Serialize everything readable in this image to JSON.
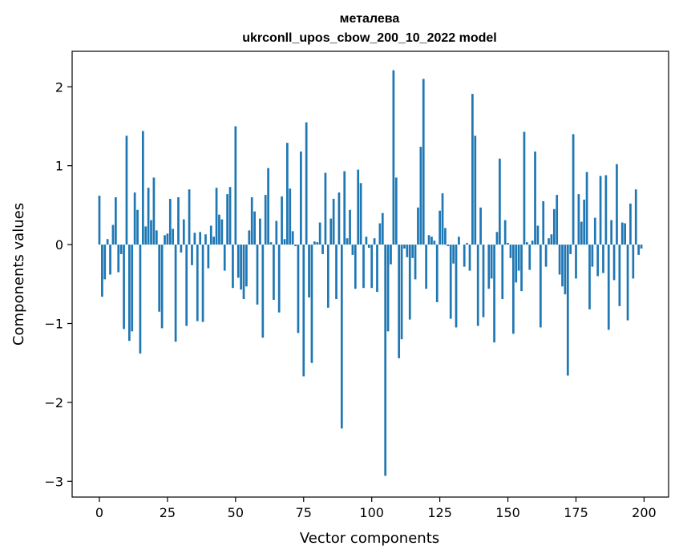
{
  "chart_data": {
    "type": "bar",
    "title": "металева",
    "subtitle": "ukrconll_upos_cbow_200_10_2022 model",
    "xlabel": "Vector components",
    "ylabel": "Components values",
    "xlim": [
      -10,
      209
    ],
    "ylim": [
      -3.2,
      2.45
    ],
    "xticks": [
      0,
      25,
      50,
      75,
      100,
      125,
      150,
      175,
      200
    ],
    "yticks": [
      -3,
      -2,
      -1,
      0,
      1,
      2
    ],
    "ytick_labels": [
      "−3",
      "−2",
      "−1",
      "0",
      "1",
      "2"
    ],
    "grid": false,
    "bar_color": "#1f77b4",
    "x": [
      0,
      1,
      2,
      3,
      4,
      5,
      6,
      7,
      8,
      9,
      10,
      11,
      12,
      13,
      14,
      15,
      16,
      17,
      18,
      19,
      20,
      21,
      22,
      23,
      24,
      25,
      26,
      27,
      28,
      29,
      30,
      31,
      32,
      33,
      34,
      35,
      36,
      37,
      38,
      39,
      40,
      41,
      42,
      43,
      44,
      45,
      46,
      47,
      48,
      49,
      50,
      51,
      52,
      53,
      54,
      55,
      56,
      57,
      58,
      59,
      60,
      61,
      62,
      63,
      64,
      65,
      66,
      67,
      68,
      69,
      70,
      71,
      72,
      73,
      74,
      75,
      76,
      77,
      78,
      79,
      80,
      81,
      82,
      83,
      84,
      85,
      86,
      87,
      88,
      89,
      90,
      91,
      92,
      93,
      94,
      95,
      96,
      97,
      98,
      99,
      100,
      101,
      102,
      103,
      104,
      105,
      106,
      107,
      108,
      109,
      110,
      111,
      112,
      113,
      114,
      115,
      116,
      117,
      118,
      119,
      120,
      121,
      122,
      123,
      124,
      125,
      126,
      127,
      128,
      129,
      130,
      131,
      132,
      133,
      134,
      135,
      136,
      137,
      138,
      139,
      140,
      141,
      142,
      143,
      144,
      145,
      146,
      147,
      148,
      149,
      150,
      151,
      152,
      153,
      154,
      155,
      156,
      157,
      158,
      159,
      160,
      161,
      162,
      163,
      164,
      165,
      166,
      167,
      168,
      169,
      170,
      171,
      172,
      173,
      174,
      175,
      176,
      177,
      178,
      179,
      180,
      181,
      182,
      183,
      184,
      185,
      186,
      187,
      188,
      189,
      190,
      191,
      192,
      193,
      194,
      195,
      196,
      197,
      198,
      199
    ],
    "values": [
      0.62,
      -0.66,
      -0.44,
      0.07,
      -0.38,
      0.25,
      0.6,
      -0.35,
      -0.12,
      -1.07,
      1.38,
      -1.22,
      -1.1,
      0.66,
      0.44,
      -1.38,
      1.44,
      0.23,
      0.72,
      0.31,
      0.85,
      0.18,
      -0.85,
      -1.06,
      0.12,
      0.14,
      0.58,
      0.2,
      -1.23,
      0.6,
      -0.1,
      0.32,
      -1.03,
      0.7,
      -0.26,
      0.15,
      -0.97,
      0.16,
      -0.98,
      0.13,
      -0.3,
      0.24,
      0.1,
      0.72,
      0.38,
      0.32,
      -0.33,
      0.64,
      0.73,
      -0.55,
      1.5,
      -0.42,
      -0.57,
      -0.69,
      -0.53,
      0.18,
      0.6,
      0.42,
      -0.76,
      0.33,
      -1.18,
      0.63,
      0.97,
      0.03,
      -0.7,
      0.3,
      -0.86,
      0.61,
      0.07,
      1.29,
      0.71,
      0.17,
      -0.02,
      -1.12,
      1.18,
      -1.67,
      1.55,
      -0.67,
      -1.5,
      0.04,
      0.03,
      0.28,
      -0.12,
      0.91,
      -0.8,
      0.33,
      0.58,
      -0.69,
      0.66,
      -2.33,
      0.93,
      0.08,
      0.44,
      -0.13,
      -0.56,
      0.95,
      0.78,
      -0.55,
      0.1,
      -0.04,
      -0.55,
      0.08,
      -0.6,
      0.27,
      0.4,
      -2.93,
      -1.1,
      -0.25,
      2.21,
      0.85,
      -1.44,
      -1.2,
      -0.05,
      -0.16,
      -0.95,
      -0.17,
      -0.44,
      0.47,
      1.24,
      2.1,
      -0.56,
      0.12,
      0.1,
      0.05,
      -0.73,
      0.43,
      0.65,
      0.21,
      -0.02,
      -0.94,
      -0.24,
      -1.05,
      0.1,
      0.0,
      -0.28,
      0.02,
      -0.33,
      1.91,
      1.38,
      -1.03,
      0.47,
      -0.92,
      0.0,
      -0.56,
      -0.43,
      -1.24,
      0.16,
      1.09,
      -0.69,
      0.31,
      0.02,
      -0.17,
      -1.13,
      -0.48,
      -0.33,
      -0.59,
      1.43,
      0.03,
      -0.32,
      0.05,
      1.18,
      0.24,
      -1.05,
      0.55,
      -0.28,
      0.08,
      0.13,
      0.45,
      0.63,
      -0.38,
      -0.53,
      -0.63,
      -1.66,
      -0.12,
      1.4,
      -0.43,
      0.64,
      0.29,
      0.57,
      0.92,
      -0.82,
      -0.28,
      0.34,
      -0.4,
      0.87,
      -0.36,
      0.88,
      -1.08,
      0.31,
      -0.45,
      1.02,
      -0.78,
      0.28,
      0.27,
      -0.96,
      0.52,
      -0.43,
      0.7,
      -0.13,
      -0.05
    ]
  }
}
